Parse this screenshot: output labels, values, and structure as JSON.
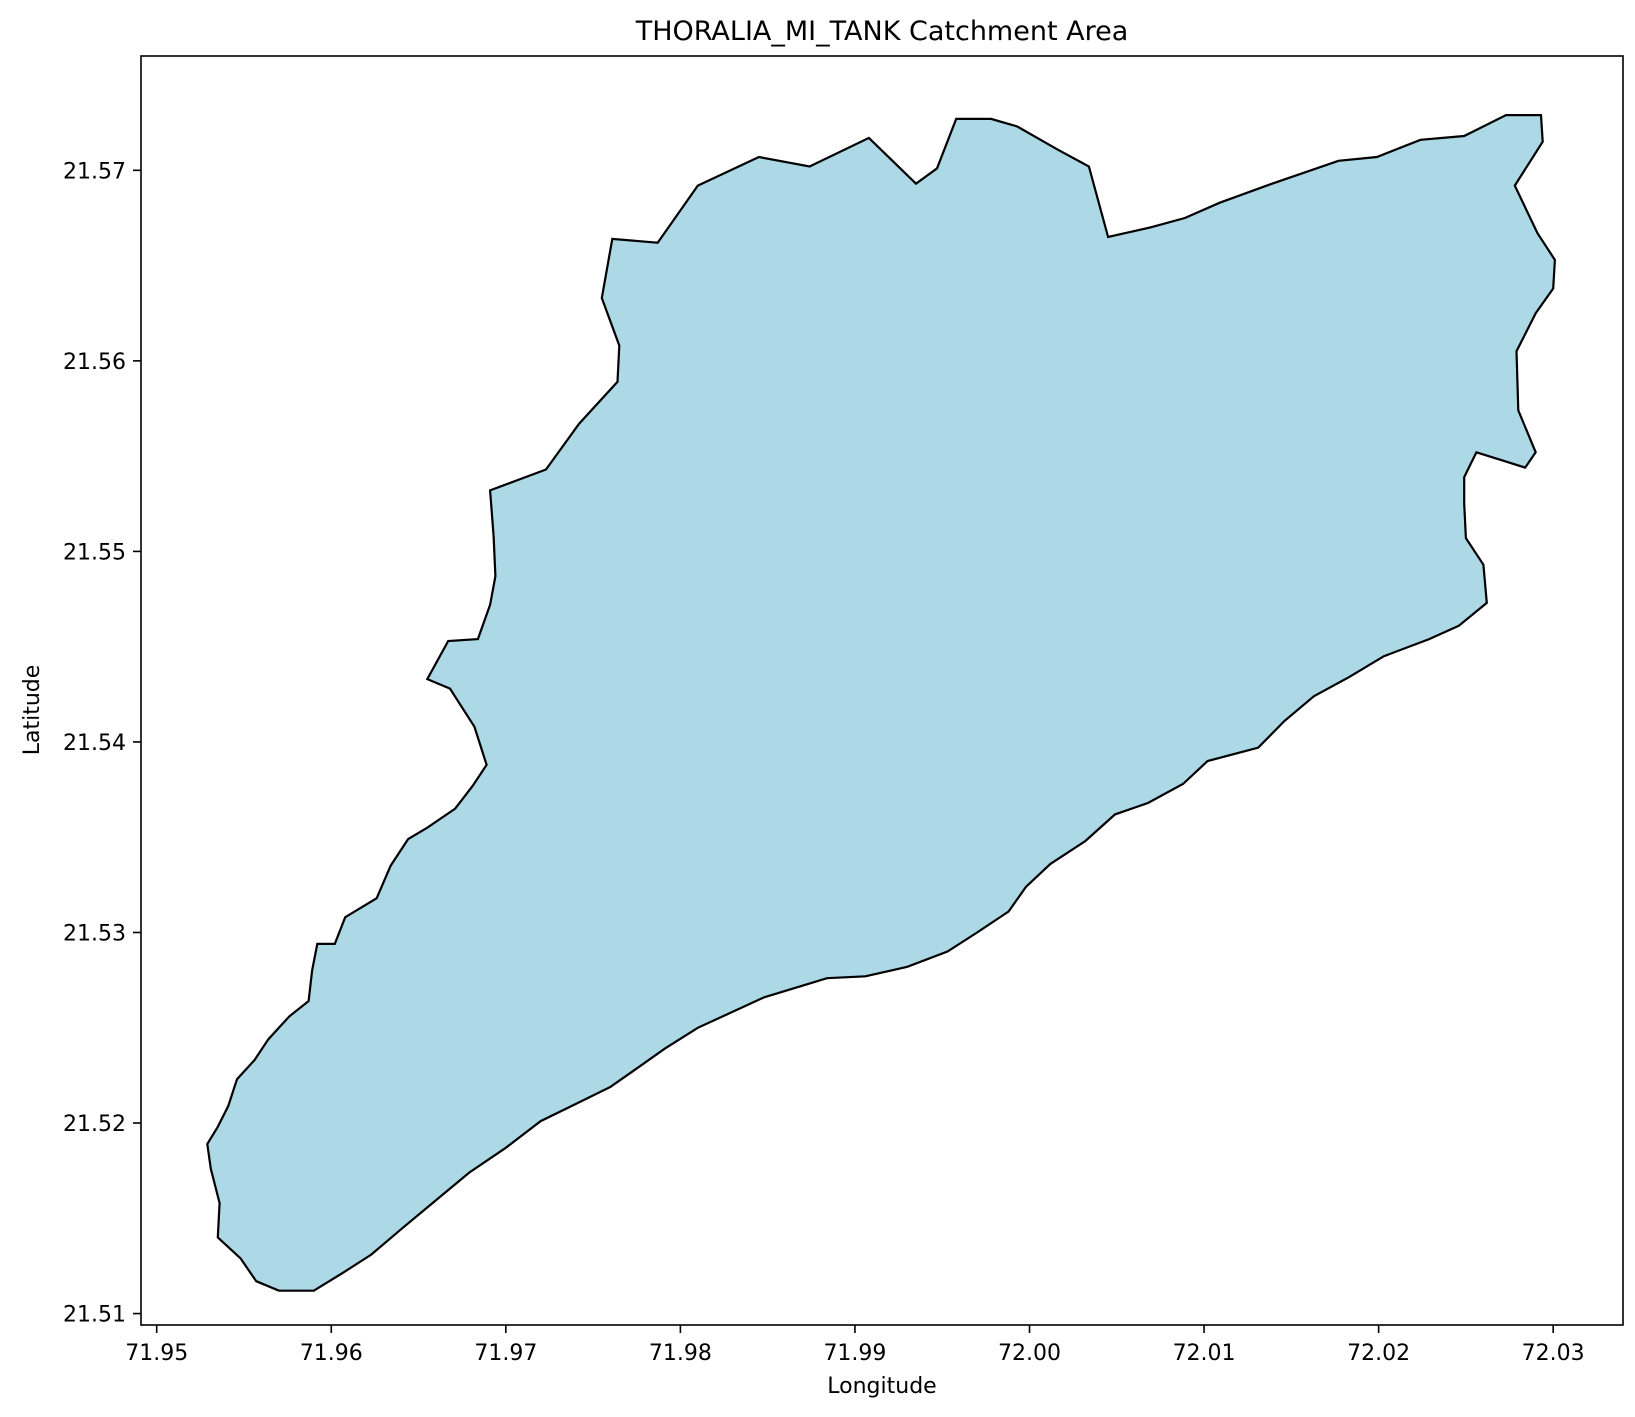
{
  "chart_data": {
    "type": "area",
    "title": "THORALIA_MI_TANK Catchment Area",
    "xlabel": "Longitude",
    "ylabel": "Latitude",
    "xlim": [
      71.9491,
      72.034
    ],
    "ylim": [
      21.5094,
      21.576
    ],
    "grid": false,
    "x_ticks": [
      71.95,
      71.96,
      71.97,
      71.98,
      71.99,
      72.0,
      72.01,
      72.02,
      72.03
    ],
    "x_tick_labels": [
      "71.95",
      "71.96",
      "71.97",
      "71.98",
      "71.99",
      "72.00",
      "72.01",
      "72.02",
      "72.03"
    ],
    "y_ticks": [
      21.51,
      21.52,
      21.53,
      21.54,
      21.55,
      21.56,
      21.57
    ],
    "y_tick_labels": [
      "21.51",
      "21.52",
      "21.53",
      "21.54",
      "21.55",
      "21.56",
      "21.57"
    ],
    "fill_color": "#add8e6",
    "edge_color": "#000000",
    "series": [
      {
        "points": [
          [
            71.9535,
            21.5198
          ],
          [
            71.9541,
            21.5209
          ],
          [
            71.9546,
            21.5223
          ],
          [
            71.9556,
            21.5233
          ],
          [
            71.9564,
            21.5244
          ],
          [
            71.9576,
            21.5256
          ],
          [
            71.9587,
            21.5264
          ],
          [
            71.9589,
            21.528
          ],
          [
            71.9592,
            21.5294
          ],
          [
            71.9602,
            21.5294
          ],
          [
            71.9608,
            21.5308
          ],
          [
            71.9626,
            21.5318
          ],
          [
            71.9634,
            21.5335
          ],
          [
            71.9644,
            21.5349
          ],
          [
            71.9655,
            21.5355
          ],
          [
            71.9671,
            21.5365
          ],
          [
            71.9681,
            21.5377
          ],
          [
            71.9689,
            21.5388
          ],
          [
            71.9682,
            21.5408
          ],
          [
            71.9668,
            21.5428
          ],
          [
            71.9655,
            21.5433
          ],
          [
            71.9667,
            21.5453
          ],
          [
            71.9684,
            21.5454
          ],
          [
            71.9691,
            21.5472
          ],
          [
            71.9694,
            21.5487
          ],
          [
            71.9693,
            21.5508
          ],
          [
            71.9691,
            21.5532
          ],
          [
            71.9723,
            21.5543
          ],
          [
            71.9742,
            21.5567
          ],
          [
            71.9764,
            21.5589
          ],
          [
            71.9765,
            21.5608
          ],
          [
            71.9755,
            21.5633
          ],
          [
            71.9761,
            21.5664
          ],
          [
            71.9787,
            21.5662
          ],
          [
            71.981,
            21.5692
          ],
          [
            71.9845,
            21.5707
          ],
          [
            71.9874,
            21.5702
          ],
          [
            71.9908,
            21.5717
          ],
          [
            71.9935,
            21.5693
          ],
          [
            71.9947,
            21.5701
          ],
          [
            71.9958,
            21.5727
          ],
          [
            71.9978,
            21.5727
          ],
          [
            71.9993,
            21.5723
          ],
          [
            72.0016,
            21.5711
          ],
          [
            72.0034,
            21.5702
          ],
          [
            72.0045,
            21.5665
          ],
          [
            72.0069,
            21.567
          ],
          [
            72.0089,
            21.5675
          ],
          [
            72.0109,
            21.5683
          ],
          [
            72.0139,
            21.5693
          ],
          [
            72.0177,
            21.5705
          ],
          [
            72.0199,
            21.5707
          ],
          [
            72.0224,
            21.5716
          ],
          [
            72.0249,
            21.5718
          ],
          [
            72.0273,
            21.5729
          ],
          [
            72.0293,
            21.5729
          ],
          [
            72.0294,
            21.5715
          ],
          [
            72.0278,
            21.5692
          ],
          [
            72.0291,
            21.5667
          ],
          [
            72.0301,
            21.5653
          ],
          [
            72.03,
            21.5638
          ],
          [
            72.029,
            21.5625
          ],
          [
            72.0279,
            21.5605
          ],
          [
            72.028,
            21.5574
          ],
          [
            72.029,
            21.5552
          ],
          [
            72.0284,
            21.5544
          ],
          [
            72.027,
            21.5548
          ],
          [
            72.0256,
            21.5552
          ],
          [
            72.0249,
            21.5539
          ],
          [
            72.0249,
            21.5525
          ],
          [
            72.025,
            21.5507
          ],
          [
            72.026,
            21.5493
          ],
          [
            72.0262,
            21.5473
          ],
          [
            72.0246,
            21.5461
          ],
          [
            72.0229,
            21.5454
          ],
          [
            72.0203,
            21.5445
          ],
          [
            72.0183,
            21.5434
          ],
          [
            72.0163,
            21.5424
          ],
          [
            72.0146,
            21.5411
          ],
          [
            72.0131,
            21.5397
          ],
          [
            72.0102,
            21.539
          ],
          [
            72.0088,
            21.5378
          ],
          [
            72.0068,
            21.5368
          ],
          [
            72.0049,
            21.5362
          ],
          [
            72.0032,
            21.5348
          ],
          [
            72.0012,
            21.5336
          ],
          [
            71.9998,
            21.5324
          ],
          [
            71.9988,
            21.5311
          ],
          [
            71.997,
            21.53
          ],
          [
            71.9953,
            21.529
          ],
          [
            71.993,
            21.5282
          ],
          [
            71.9906,
            21.5277
          ],
          [
            71.9884,
            21.5276
          ],
          [
            71.9848,
            21.5266
          ],
          [
            71.981,
            21.525
          ],
          [
            71.9791,
            21.5239
          ],
          [
            71.9774,
            21.5228
          ],
          [
            71.976,
            21.5219
          ],
          [
            71.974,
            21.521
          ],
          [
            71.972,
            21.5201
          ],
          [
            71.97,
            21.5187
          ],
          [
            71.9679,
            21.5174
          ],
          [
            71.9658,
            21.5158
          ],
          [
            71.9641,
            21.5145
          ],
          [
            71.9623,
            21.5131
          ],
          [
            71.9606,
            21.5121
          ],
          [
            71.959,
            21.5112
          ],
          [
            71.957,
            21.5112
          ],
          [
            71.9557,
            21.5117
          ],
          [
            71.9548,
            21.5129
          ],
          [
            71.9535,
            21.514
          ],
          [
            71.9536,
            21.5158
          ],
          [
            71.9531,
            21.5176
          ],
          [
            71.9529,
            21.5189
          ]
        ]
      }
    ]
  }
}
